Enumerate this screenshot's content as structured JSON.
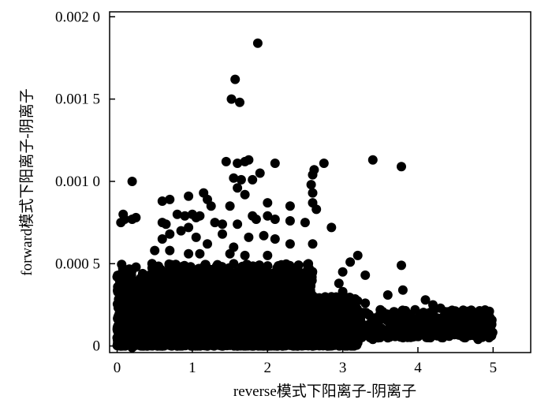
{
  "chart_data": {
    "type": "scatter",
    "title": "",
    "xlabel": "reverse模式下阳离子-阴离子",
    "ylabel": "forward模式下阳离子-阴离子",
    "xlim": [
      -0.1,
      5.5
    ],
    "ylim": [
      -4e-05,
      0.00203
    ],
    "x_ticks": [
      0,
      1,
      2,
      3,
      4,
      5
    ],
    "x_tick_labels": [
      "0",
      "1",
      "2",
      "3",
      "4",
      "5"
    ],
    "y_ticks": [
      0,
      0.0005,
      0.001,
      0.0015,
      0.002
    ],
    "y_tick_labels": [
      "0",
      "0.000 5",
      "0.001 0",
      "0.001 5",
      "0.002 0"
    ],
    "grid": false,
    "legend": "none",
    "marker_color": "#000000",
    "points": [
      [
        1.87,
        0.00184
      ],
      [
        1.57,
        0.00162
      ],
      [
        1.52,
        0.0015
      ],
      [
        1.63,
        0.00148
      ],
      [
        3.4,
        0.00113
      ],
      [
        3.78,
        0.00109
      ],
      [
        0.2,
        0.001
      ],
      [
        1.7,
        0.00112
      ],
      [
        1.75,
        0.00113
      ],
      [
        1.45,
        0.00112
      ],
      [
        1.6,
        0.00111
      ],
      [
        2.1,
        0.00111
      ],
      [
        2.75,
        0.00111
      ],
      [
        2.62,
        0.00107
      ],
      [
        2.6,
        0.00104
      ],
      [
        1.9,
        0.00105
      ],
      [
        1.55,
        0.00102
      ],
      [
        1.65,
        0.00101
      ],
      [
        1.8,
        0.00101
      ],
      [
        2.58,
        0.00098
      ],
      [
        2.6,
        0.00093
      ],
      [
        2.6,
        0.00087
      ],
      [
        2.65,
        0.00083
      ],
      [
        0.08,
        0.0008
      ],
      [
        0.1,
        0.00077
      ],
      [
        0.25,
        0.00078
      ],
      [
        0.2,
        0.00077
      ],
      [
        0.05,
        0.00075
      ],
      [
        0.6,
        0.00088
      ],
      [
        0.7,
        0.00089
      ],
      [
        0.95,
        0.00091
      ],
      [
        1.15,
        0.00093
      ],
      [
        1.2,
        0.00089
      ],
      [
        1.25,
        0.00085
      ],
      [
        1.5,
        0.00085
      ],
      [
        1.7,
        0.00092
      ],
      [
        1.6,
        0.00096
      ],
      [
        2.0,
        0.00087
      ],
      [
        2.3,
        0.00085
      ],
      [
        2.5,
        0.00075
      ],
      [
        2.85,
        0.00072
      ],
      [
        0.6,
        0.00075
      ],
      [
        0.65,
        0.00074
      ],
      [
        0.8,
        0.0008
      ],
      [
        0.9,
        0.00079
      ],
      [
        1.0,
        0.0008
      ],
      [
        1.05,
        0.00078
      ],
      [
        1.1,
        0.00079
      ],
      [
        1.3,
        0.00075
      ],
      [
        1.4,
        0.00074
      ],
      [
        1.6,
        0.00074
      ],
      [
        1.8,
        0.00079
      ],
      [
        1.85,
        0.00077
      ],
      [
        2.0,
        0.00079
      ],
      [
        2.1,
        0.00077
      ],
      [
        2.3,
        0.00076
      ],
      [
        0.6,
        0.00065
      ],
      [
        0.7,
        0.00068
      ],
      [
        0.85,
        0.0007
      ],
      [
        0.95,
        0.00072
      ],
      [
        1.05,
        0.00066
      ],
      [
        1.2,
        0.00062
      ],
      [
        1.4,
        0.00068
      ],
      [
        1.55,
        0.0006
      ],
      [
        1.75,
        0.00066
      ],
      [
        1.95,
        0.00067
      ],
      [
        2.1,
        0.00065
      ],
      [
        2.3,
        0.00062
      ],
      [
        2.6,
        0.00062
      ],
      [
        0.5,
        0.00058
      ],
      [
        0.7,
        0.00058
      ],
      [
        0.95,
        0.00056
      ],
      [
        1.1,
        0.00056
      ],
      [
        1.5,
        0.00056
      ],
      [
        1.7,
        0.00055
      ],
      [
        2.0,
        0.00055
      ],
      [
        3.2,
        0.00055
      ],
      [
        3.1,
        0.00051
      ],
      [
        3.78,
        0.00049
      ],
      [
        3.0,
        0.00045
      ],
      [
        3.3,
        0.00043
      ],
      [
        3.8,
        0.00034
      ],
      [
        3.6,
        0.00031
      ],
      [
        4.1,
        0.00028
      ],
      [
        4.2,
        0.00025
      ],
      [
        4.3,
        0.00023
      ],
      [
        4.5,
        0.00021
      ],
      [
        4.7,
        0.00021
      ],
      [
        4.8,
        0.0002
      ],
      [
        4.9,
        0.0002
      ],
      [
        4.95,
        0.00021
      ],
      [
        4.85,
        0.00016
      ],
      [
        4.75,
        0.00011
      ],
      [
        4.65,
        6e-05
      ],
      [
        4.8,
        4e-05
      ],
      [
        4.9,
        0.0001
      ],
      [
        4.55,
        9e-05
      ],
      [
        4.45,
        0.00013
      ],
      [
        4.3,
        0.00012
      ],
      [
        4.2,
        0.00016
      ],
      [
        4.0,
        0.0001
      ],
      [
        3.85,
        0.00015
      ],
      [
        3.7,
        0.00019
      ],
      [
        3.5,
        0.00022
      ],
      [
        3.3,
        0.00026
      ],
      [
        3.1,
        0.00028
      ],
      [
        3.0,
        0.00033
      ],
      [
        2.95,
        0.00038
      ],
      [
        0.0,
        0.00042
      ],
      [
        0.05,
        0.00035
      ],
      [
        0.1,
        0.00038
      ],
      [
        0.0,
        5e-05
      ],
      [
        0.05,
        0.0
      ],
      [
        0.2,
        -1e-05
      ],
      [
        0.4,
        0.0
      ],
      [
        0.6,
        0.0
      ],
      [
        0.8,
        0.0
      ],
      [
        1.0,
        0.0
      ],
      [
        1.2,
        0.0
      ],
      [
        1.4,
        0.0
      ],
      [
        1.6,
        0.0
      ],
      [
        1.8,
        0.0
      ],
      [
        2.0,
        0.0
      ],
      [
        2.2,
        0.0
      ],
      [
        2.4,
        0.0
      ],
      [
        2.6,
        0.0
      ],
      [
        2.8,
        0.0
      ],
      [
        3.0,
        1e-05
      ],
      [
        3.2,
        2e-05
      ],
      [
        3.4,
        4e-05
      ],
      [
        3.6,
        5e-05
      ],
      [
        3.8,
        7e-05
      ],
      [
        4.0,
        8e-05
      ],
      [
        4.2,
        9e-05
      ],
      [
        4.4,
        0.0001
      ]
    ],
    "dense_clusters": [
      {
        "x_range": [
          0.0,
          3.2
        ],
        "y_range": [
          0.0,
          0.0003
        ],
        "n": 2600
      },
      {
        "x_range": [
          0.4,
          2.6
        ],
        "y_range": [
          0.0002,
          0.00045
        ],
        "n": 1200
      },
      {
        "x_range": [
          0.0,
          2.6
        ],
        "y_range": [
          0.0003,
          0.0005
        ],
        "n": 350
      },
      {
        "x_range": [
          3.0,
          5.0
        ],
        "y_range": [
          5e-05,
          0.00022
        ],
        "n": 350
      },
      {
        "x_range": [
          0.0,
          0.6
        ],
        "y_range": [
          0.0,
          0.0004
        ],
        "n": 300
      }
    ]
  }
}
